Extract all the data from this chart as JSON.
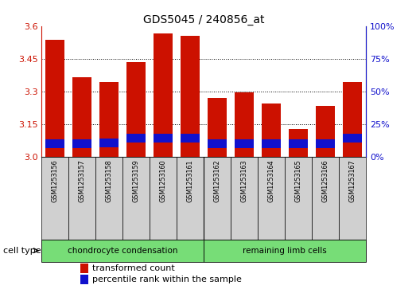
{
  "title": "GDS5045 / 240856_at",
  "samples": [
    "GSM1253156",
    "GSM1253157",
    "GSM1253158",
    "GSM1253159",
    "GSM1253160",
    "GSM1253161",
    "GSM1253162",
    "GSM1253163",
    "GSM1253164",
    "GSM1253165",
    "GSM1253166",
    "GSM1253167"
  ],
  "transformed_count": [
    3.535,
    3.365,
    3.345,
    3.435,
    3.565,
    3.555,
    3.27,
    3.295,
    3.245,
    3.13,
    3.235,
    3.345
  ],
  "percentile_rank_top": [
    3.04,
    3.04,
    3.045,
    3.065,
    3.065,
    3.065,
    3.04,
    3.04,
    3.04,
    3.04,
    3.04,
    3.065
  ],
  "y_min": 3.0,
  "y_max": 3.6,
  "y_ticks": [
    3.0,
    3.15,
    3.3,
    3.45,
    3.6
  ],
  "y2_ticks_pct": [
    0,
    25,
    50,
    75,
    100
  ],
  "bar_color_red": "#cc1100",
  "bar_color_blue": "#1111cc",
  "bg_color": "#ffffff",
  "grid_color": "#000000",
  "cell_type_labels": [
    "chondrocyte condensation",
    "remaining limb cells"
  ],
  "cell_type_label": "cell type",
  "cell_type_color": "#77dd77",
  "legend": [
    "transformed count",
    "percentile rank within the sample"
  ],
  "tick_color_left": "#cc1100",
  "tick_color_right": "#1111cc",
  "bar_width": 0.7,
  "sample_bg_color": "#d0d0d0",
  "separator_idx": 6,
  "blue_bar_height": 0.04
}
